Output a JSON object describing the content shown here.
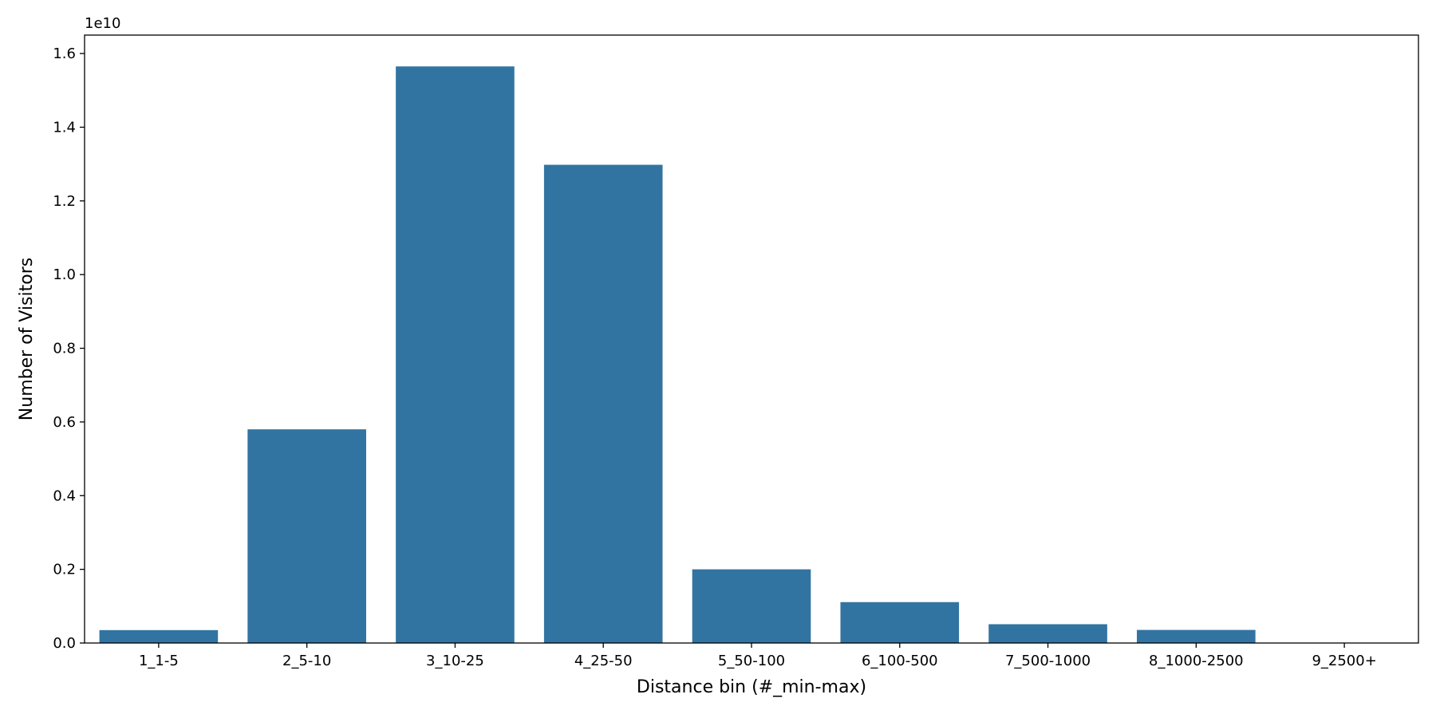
{
  "chart_data": {
    "type": "bar",
    "title": "",
    "xlabel": "Distance bin (#_min-max)",
    "ylabel": "Number of Visitors",
    "y_offset_label": "1e10",
    "y_scale": 10000000000,
    "categories": [
      "1_1-5",
      "2_5-10",
      "3_10-25",
      "4_25-50",
      "5_50-100",
      "6_100-500",
      "7_500-1000",
      "8_1000-2500",
      "9_2500+"
    ],
    "values": [
      350000000,
      5800000000,
      15650000000,
      12980000000,
      2000000000,
      1110000000,
      510000000,
      355000000,
      10000000
    ],
    "ylim": [
      0,
      1.65
    ],
    "yticks": [
      0.0,
      0.2,
      0.4,
      0.6,
      0.8,
      1.0,
      1.2,
      1.4,
      1.6
    ],
    "ytick_labels": [
      "0.0",
      "0.2",
      "0.4",
      "0.6",
      "0.8",
      "1.0",
      "1.2",
      "1.4",
      "1.6"
    ],
    "bar_color": "#3274a1",
    "grid": false,
    "legend": "none"
  }
}
